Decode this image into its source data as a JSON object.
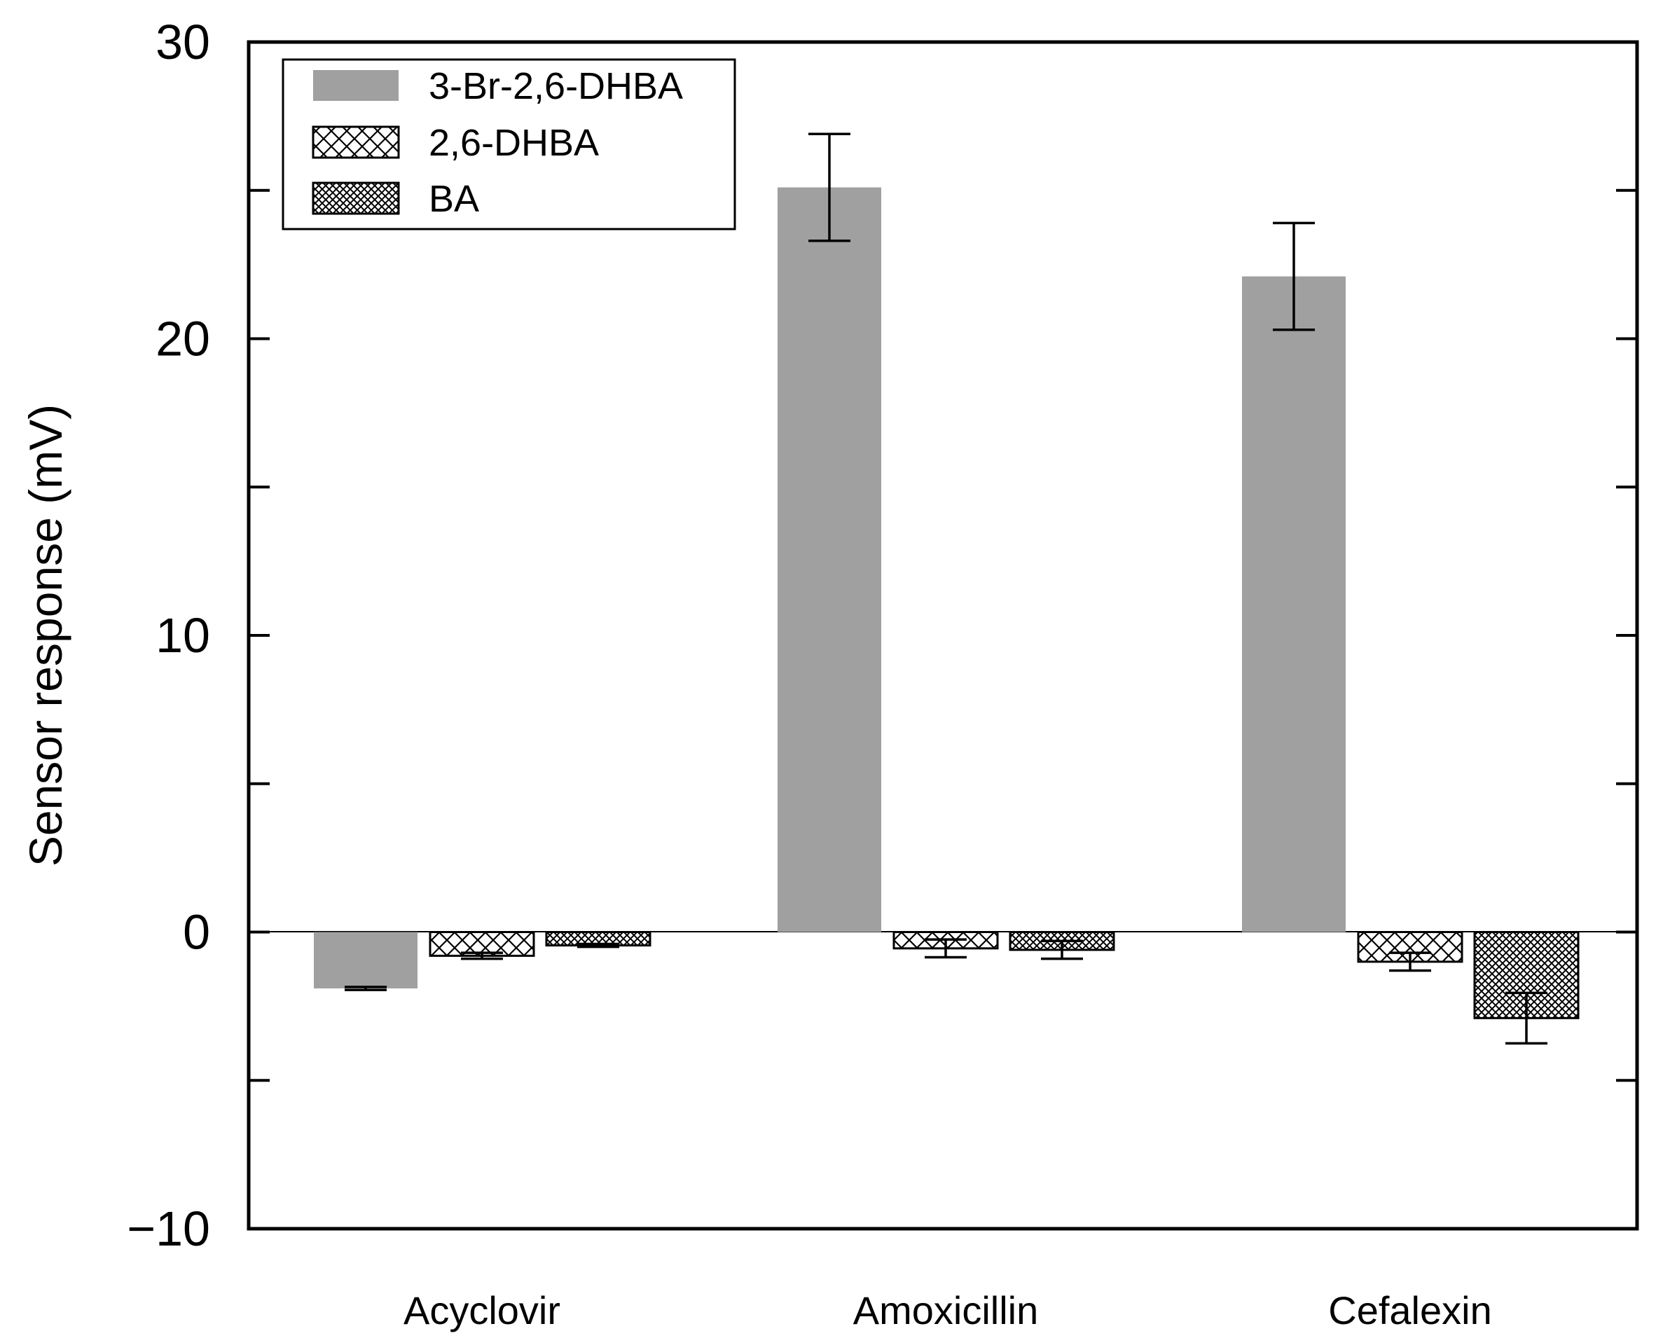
{
  "chart_data": {
    "type": "bar",
    "title": "",
    "xlabel": "",
    "ylabel": "Sensor response (mV)",
    "ylim": [
      -10,
      30
    ],
    "yticks": [
      -10,
      0,
      10,
      20,
      30
    ],
    "ytick_labels": [
      "−10",
      "0",
      "10",
      "20",
      "30"
    ],
    "yminor_ticks": [
      -5,
      5,
      15,
      25
    ],
    "categories": [
      "Acyclovir",
      "Amoxicillin",
      "Cefalexin"
    ],
    "legend_position": "top-left",
    "grid": false,
    "series": [
      {
        "name": "3-Br-2,6-DHBA",
        "pattern": "solid-gray",
        "color": "#a0a0a0",
        "values": [
          -1.9,
          25.1,
          22.1
        ],
        "errors": [
          0.05,
          1.8,
          1.8
        ]
      },
      {
        "name": "2,6-DHBA",
        "pattern": "diagonal-crosshatch",
        "color": "#000000",
        "values": [
          -0.8,
          -0.55,
          -1.0
        ],
        "errors": [
          0.1,
          0.3,
          0.3
        ]
      },
      {
        "name": "BA",
        "pattern": "fine-crosshatch",
        "color": "#000000",
        "values": [
          -0.45,
          -0.6,
          -2.9
        ],
        "errors": [
          0.05,
          0.3,
          0.85
        ]
      }
    ]
  }
}
